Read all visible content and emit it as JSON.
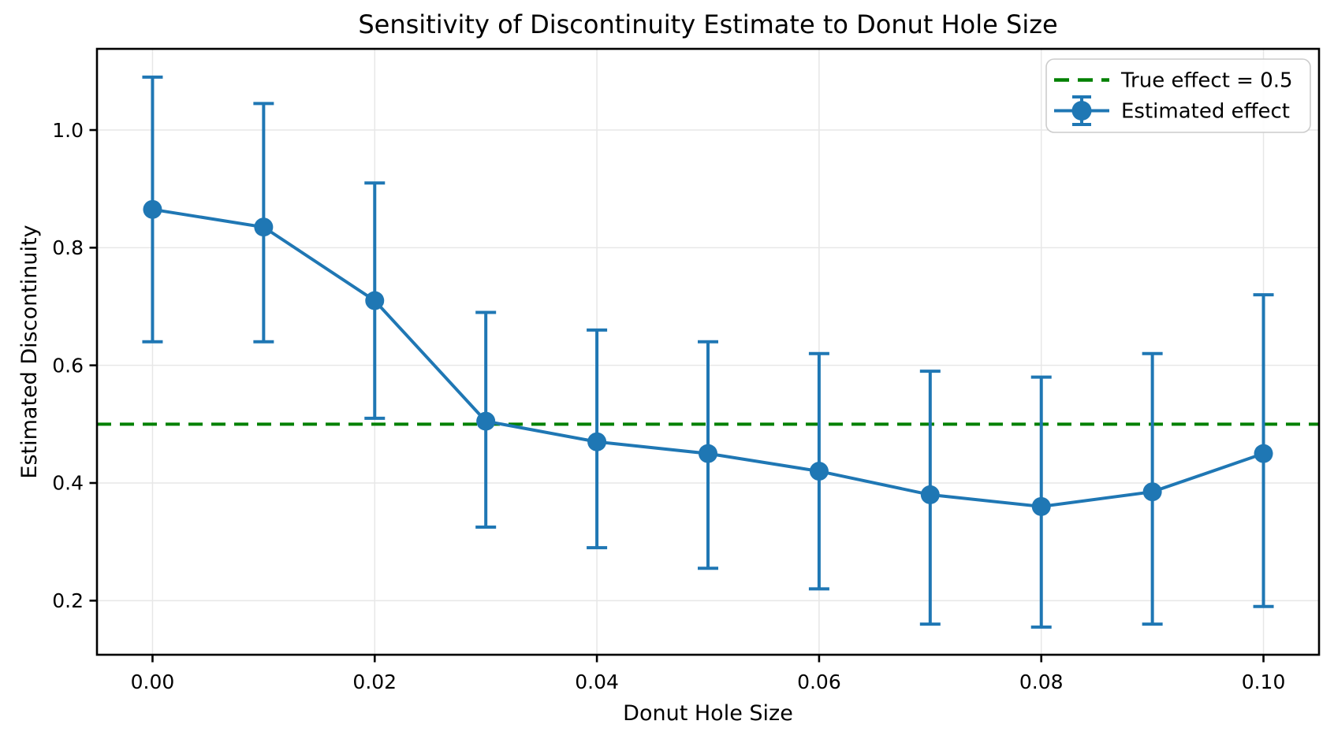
{
  "figure": {
    "background": "#ffffff"
  },
  "chart_data": {
    "type": "line",
    "subtype": "errorbar",
    "title": "Sensitivity of Discontinuity Estimate to Donut Hole Size",
    "xlabel": "Donut Hole Size",
    "ylabel": "Estimated Discontinuity",
    "x": [
      0.0,
      0.01,
      0.02,
      0.03,
      0.04,
      0.05,
      0.06,
      0.07,
      0.08,
      0.09,
      0.1
    ],
    "series": [
      {
        "name": "Estimated effect",
        "color": "#1f77b4",
        "values": [
          0.865,
          0.835,
          0.71,
          0.505,
          0.47,
          0.45,
          0.42,
          0.38,
          0.36,
          0.385,
          0.45
        ],
        "ci_lower": [
          0.64,
          0.64,
          0.51,
          0.325,
          0.29,
          0.255,
          0.22,
          0.16,
          0.155,
          0.16,
          0.19
        ],
        "ci_upper": [
          1.09,
          1.045,
          0.91,
          0.69,
          0.66,
          0.64,
          0.62,
          0.59,
          0.58,
          0.62,
          0.72
        ]
      }
    ],
    "reference_line": {
      "label": "True effect = 0.5",
      "value": 0.5,
      "color": "#008000",
      "style": "dashed"
    },
    "xticks": {
      "values": [
        0.0,
        0.02,
        0.04,
        0.06,
        0.08,
        0.1
      ],
      "labels": [
        "0.00",
        "0.02",
        "0.04",
        "0.06",
        "0.08",
        "0.10"
      ]
    },
    "yticks": {
      "values": [
        0.2,
        0.4,
        0.6,
        0.8,
        1.0
      ],
      "labels": [
        "0.2",
        "0.4",
        "0.6",
        "0.8",
        "1.0"
      ]
    },
    "xlim": [
      -0.005,
      0.105
    ],
    "ylim": [
      0.108,
      1.138
    ],
    "grid": true,
    "grid_color": "#e7e7e7",
    "legend": {
      "position": "upper right",
      "entries": [
        "True effect = 0.5",
        "Estimated effect"
      ]
    }
  }
}
